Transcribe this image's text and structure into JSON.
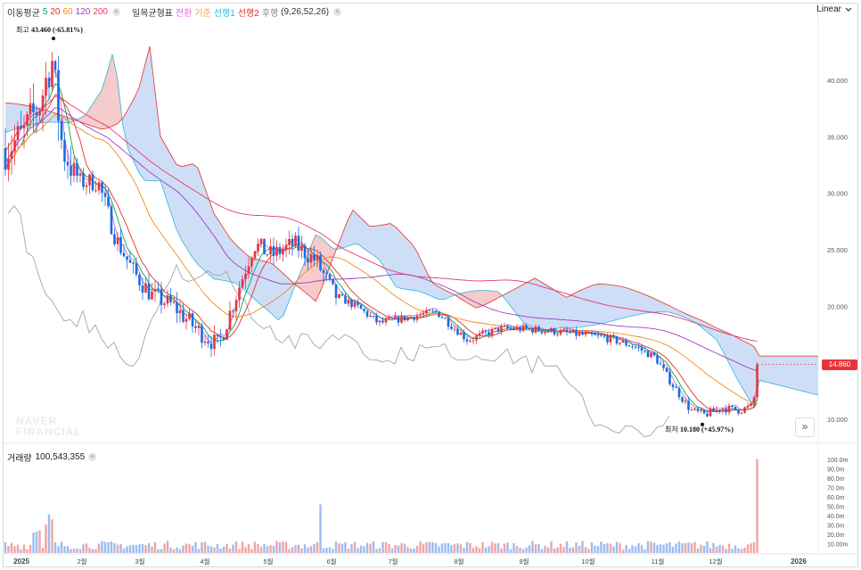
{
  "legend": {
    "ma_label": "이동평균",
    "ma_periods": [
      {
        "text": "5",
        "color": "#00a651"
      },
      {
        "text": "20",
        "color": "#e0312b"
      },
      {
        "text": "60",
        "color": "#f08a1d"
      },
      {
        "text": "120",
        "color": "#a23cc2"
      },
      {
        "text": "200",
        "color": "#e8376c"
      }
    ],
    "ichimoku_label": "일목균형표",
    "ichimoku_lines": [
      {
        "text": "전환",
        "color": "#e36bd6"
      },
      {
        "text": "기준",
        "color": "#f0a13c"
      },
      {
        "text": "선행1",
        "color": "#2bb7e0"
      },
      {
        "text": "선행2",
        "color": "#e0312b"
      },
      {
        "text": "후행",
        "color": "#888888"
      }
    ],
    "ichimoku_params": "(9,26,52,26)",
    "close_glyph": "×"
  },
  "scale": {
    "label": "Linear",
    "icon": "chevron-down-icon"
  },
  "watermark": {
    "line1": "NAVER",
    "line2": "FINANCIAL"
  },
  "nav_button": {
    "glyph": "»"
  },
  "current_price": "14.860",
  "annotations": {
    "high_prefix": "최고",
    "high_value": "43.460 (-65.81%)",
    "low_prefix": "최저",
    "low_value": "10.180 (+45.97%)"
  },
  "volume": {
    "label": "거래량",
    "value": "100,543,355"
  },
  "chart_data": {
    "type": "candlestick",
    "price_axis": {
      "ticks": [
        "40.000",
        "35.000",
        "30.000",
        "25.000",
        "20.000",
        "15.000",
        "10.000"
      ],
      "values": [
        40,
        35,
        30,
        25,
        20,
        15,
        10
      ],
      "ylim": [
        8.7,
        45.3
      ]
    },
    "volume_axis": {
      "ticks": [
        "100.0m",
        "90.0m",
        "80.0m",
        "70.0m",
        "60.0m",
        "50.0m",
        "40.0m",
        "30.0m",
        "20.0m",
        "10.00m"
      ],
      "max": 100
    },
    "x_ticks": [
      "2025",
      "2월",
      "3월",
      "4월",
      "5월",
      "6월",
      "7월",
      "8월",
      "9월",
      "10월",
      "11월",
      "12월",
      "2026"
    ],
    "high": 43.46,
    "low": 10.18,
    "last_close": 14.86,
    "colors": {
      "up": "#e5353b",
      "down": "#1a6be0",
      "kumo_bull": "#f5c2c2",
      "kumo_bear": "#c5d8f5"
    }
  }
}
